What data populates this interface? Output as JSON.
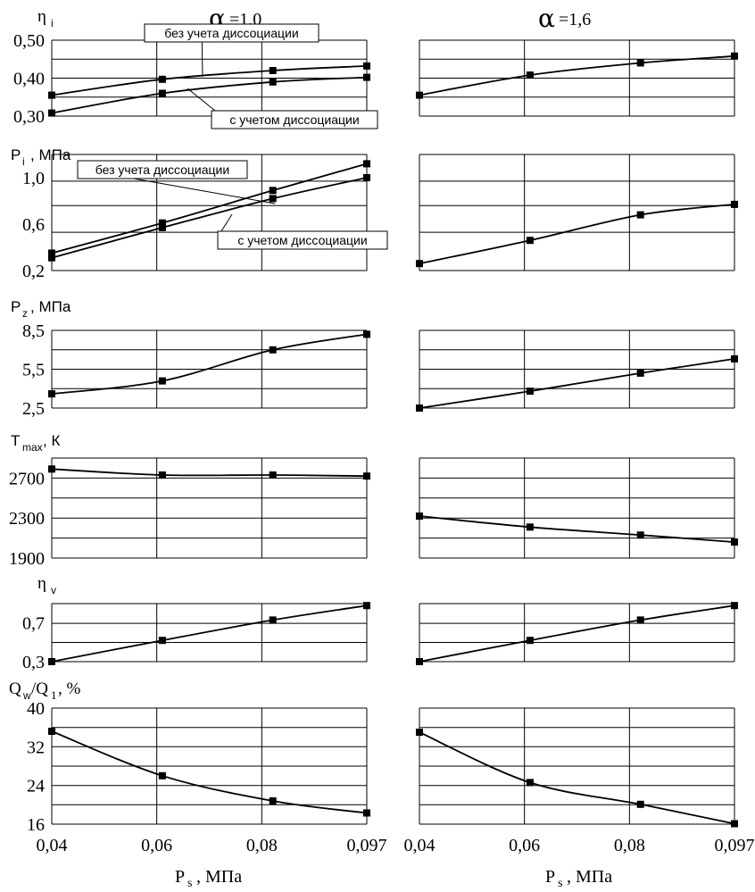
{
  "columns": [
    {
      "symbol": "α",
      "suffix": " =1,0"
    },
    {
      "symbol": "α",
      "suffix": " =1,6"
    }
  ],
  "x_axis": {
    "symbol": "P",
    "sub": "s",
    "unit": ", МПа",
    "tick_labels": [
      "0,04",
      "0,06",
      "0,08",
      "0,097"
    ]
  },
  "chart_data": [
    {
      "type": "line",
      "ylabel_main": "η",
      "ylabel_sub": "i",
      "ylabel_unit": "",
      "ylim": [
        0.3,
        0.5
      ],
      "yticks": [
        0.3,
        0.4,
        0.5
      ],
      "ytick_labels": [
        "0,30",
        "0,40",
        "0,50"
      ],
      "x": [
        0.04,
        0.06,
        0.08,
        0.097
      ],
      "left": {
        "series": [
          {
            "name": "без учета диссоциации",
            "values": [
              0.355,
              0.397,
              0.42,
              0.432
            ]
          },
          {
            "name": "с учетом диссоциации",
            "values": [
              0.308,
              0.36,
              0.39,
              0.402
            ]
          }
        ],
        "annotations": [
          {
            "text": "без учета диссоциации"
          },
          {
            "text": "с учетом диссоциации"
          }
        ]
      },
      "right": {
        "series": [
          {
            "values": [
              0.355,
              0.408,
              0.44,
              0.458
            ]
          }
        ]
      }
    },
    {
      "type": "line",
      "ylabel_main": "P",
      "ylabel_sub": "i",
      "ylabel_unit": ", МПа",
      "ylim": [
        0.2,
        1.2
      ],
      "yticks": [
        0.2,
        0.6,
        1.0
      ],
      "ytick_labels": [
        "0,2",
        "0,6",
        "1,0"
      ],
      "x": [
        0.04,
        0.06,
        0.08,
        0.097
      ],
      "left": {
        "series": [
          {
            "name": "без учета диссоциации",
            "values": [
              0.35,
              0.61,
              0.89,
              1.12
            ]
          },
          {
            "name": "с учетом диссоциации",
            "values": [
              0.31,
              0.57,
              0.82,
              1.0
            ]
          }
        ],
        "annotations": [
          {
            "text": "без учета диссоциации"
          },
          {
            "text": "с учетом диссоциации"
          }
        ]
      },
      "right": {
        "series": [
          {
            "values": [
              0.26,
              0.46,
              0.68,
              0.77
            ]
          }
        ]
      }
    },
    {
      "type": "line",
      "ylabel_main": "P",
      "ylabel_sub": "z",
      "ylabel_unit": ", МПа",
      "ylim": [
        2.5,
        8.5
      ],
      "yticks": [
        2.5,
        5.5,
        8.5
      ],
      "ytick_labels": [
        "2,5",
        "5,5",
        "8,5"
      ],
      "x": [
        0.04,
        0.06,
        0.08,
        0.097
      ],
      "left": {
        "series": [
          {
            "values": [
              3.6,
              4.6,
              7.0,
              8.2
            ]
          }
        ]
      },
      "right": {
        "series": [
          {
            "values": [
              2.5,
              3.8,
              5.2,
              6.3
            ]
          }
        ]
      }
    },
    {
      "type": "line",
      "ylabel_main": "T",
      "ylabel_sub": "max",
      "ylabel_unit": ", К",
      "ylim": [
        1900,
        2900
      ],
      "yticks": [
        1900,
        2300,
        2700
      ],
      "ytick_labels": [
        "1900",
        "2300",
        "2700"
      ],
      "x": [
        0.04,
        0.06,
        0.08,
        0.097
      ],
      "left": {
        "series": [
          {
            "values": [
              2790,
              2730,
              2730,
              2720
            ]
          }
        ]
      },
      "right": {
        "series": [
          {
            "values": [
              2320,
              2210,
              2130,
              2060
            ]
          }
        ]
      }
    },
    {
      "type": "line",
      "ylabel_main": "η",
      "ylabel_sub": "v",
      "ylabel_unit": "",
      "ylim": [
        0.3,
        0.9
      ],
      "yticks": [
        0.3,
        0.7
      ],
      "ytick_labels": [
        "0,3",
        "0,7"
      ],
      "x": [
        0.04,
        0.06,
        0.08,
        0.097
      ],
      "left": {
        "series": [
          {
            "values": [
              0.3,
              0.52,
              0.73,
              0.88
            ]
          }
        ]
      },
      "right": {
        "series": [
          {
            "values": [
              0.3,
              0.52,
              0.73,
              0.88
            ]
          }
        ]
      }
    },
    {
      "type": "line",
      "ylabel_main": "Q",
      "ylabel_sub": "w",
      "ylabel_mid": "/Q",
      "ylabel_sub2": "1",
      "ylabel_unit": ",  %",
      "ylim": [
        16,
        40
      ],
      "yticks": [
        16,
        24,
        32,
        40
      ],
      "ytick_labels": [
        "16",
        "24",
        "32",
        "40"
      ],
      "x": [
        0.04,
        0.06,
        0.08,
        0.097
      ],
      "left": {
        "series": [
          {
            "values": [
              35.2,
              26.0,
              20.8,
              18.3
            ]
          }
        ]
      },
      "right": {
        "series": [
          {
            "values": [
              35.0,
              24.6,
              20.1,
              16.1
            ]
          }
        ]
      }
    }
  ]
}
